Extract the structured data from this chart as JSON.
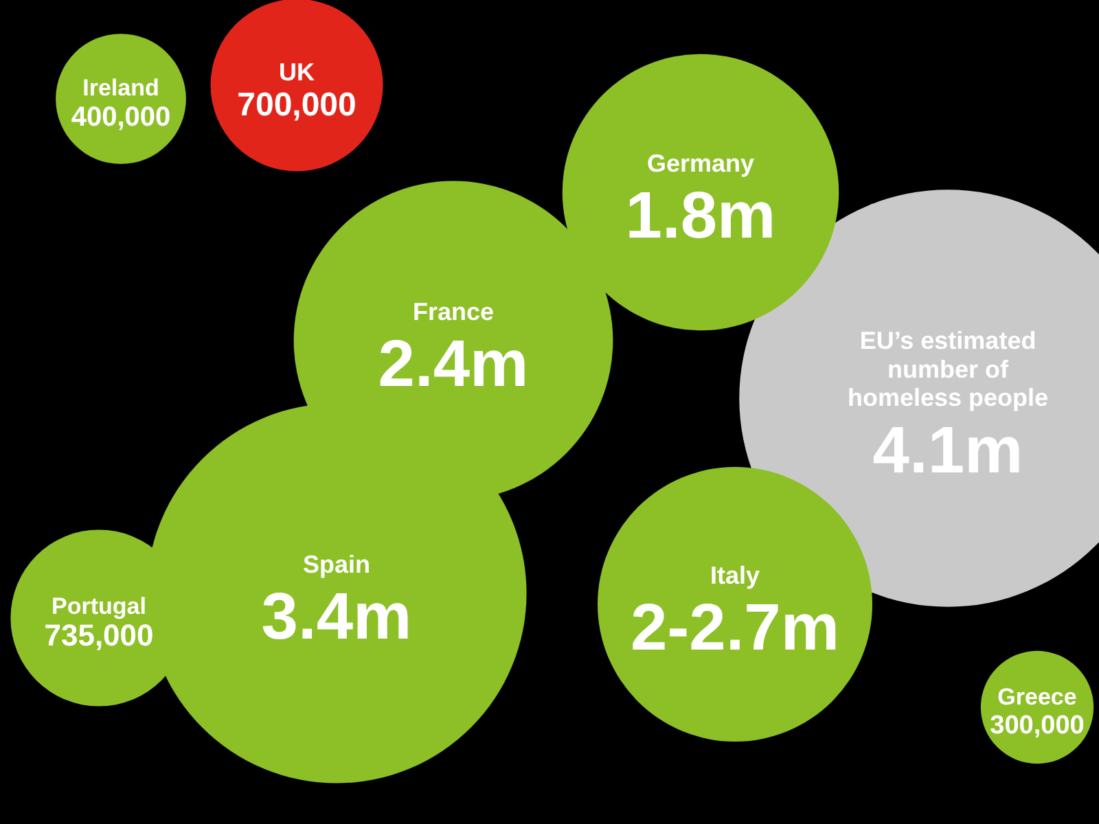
{
  "chart_data": {
    "type": "other",
    "categories": [
      "Ireland",
      "UK",
      "Germany",
      "France",
      "EU’s estimated number of homeless people",
      "Spain",
      "Portugal",
      "Italy",
      "Greece"
    ],
    "values": [
      400000,
      700000,
      1800000,
      2400000,
      4100000,
      3400000,
      735000,
      null,
      300000
    ],
    "value_labels": [
      "400,000",
      "700,000",
      "1.8m",
      "2.4m",
      "4.1m",
      "3.4m",
      "735,000",
      "2-2.7m",
      "300,000"
    ],
    "colors": [
      "#8dbf27",
      "#e2251b",
      "#8dbf27",
      "#8dbf27",
      "#c9c9c9",
      "#8dbf27",
      "#8dbf27",
      "#8dbf27",
      "#8dbf27"
    ]
  }
}
